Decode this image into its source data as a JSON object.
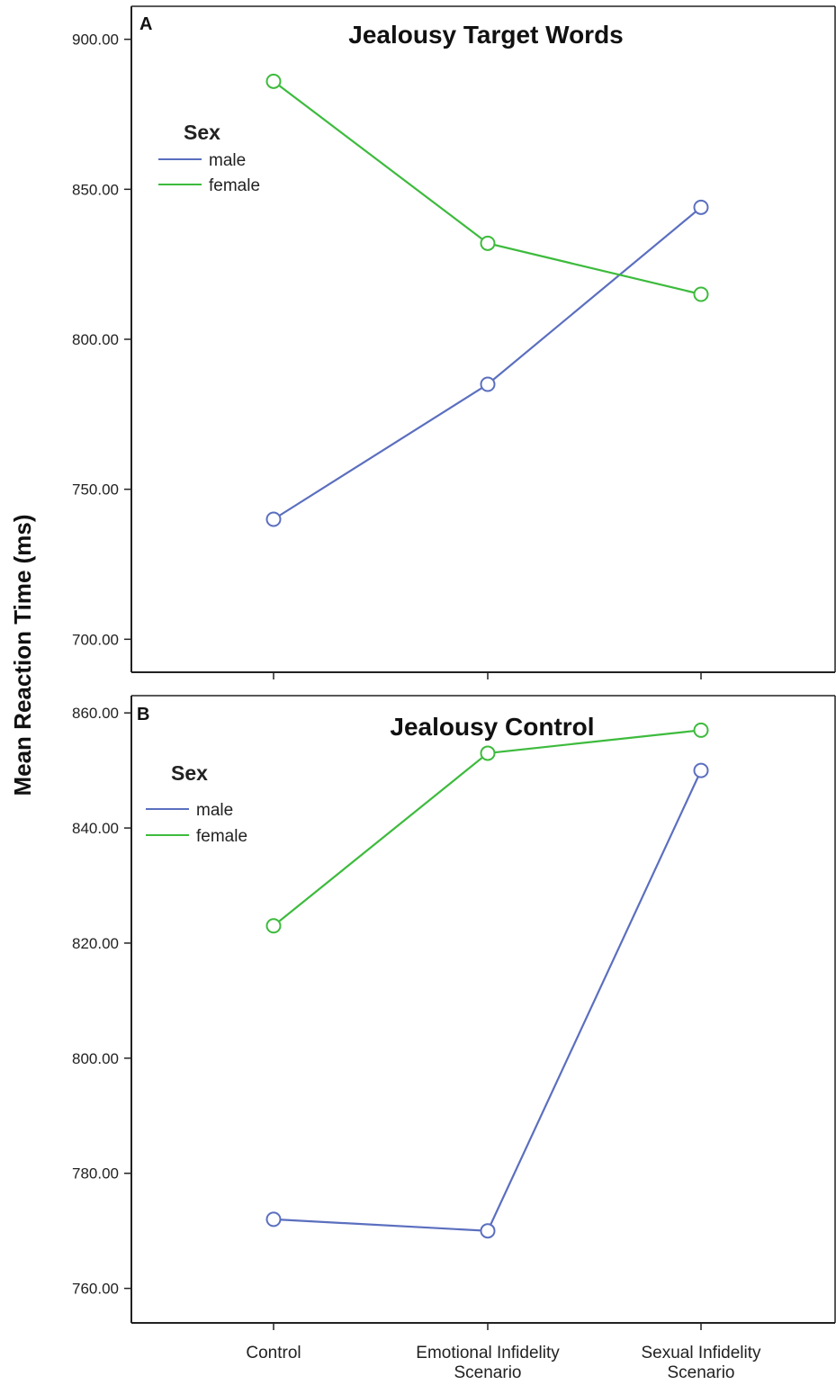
{
  "figure": {
    "ylabel": "Mean Reaction Time (ms)",
    "categories": [
      [
        "Control"
      ],
      [
        "Emotional Infidelity",
        "Scenario"
      ],
      [
        "Sexual Infidelity",
        "Scenario"
      ]
    ]
  },
  "colors": {
    "male": "#5b6fbf",
    "female": "#3dbb3d",
    "axis": "#222222"
  },
  "chart_data": [
    {
      "type": "line",
      "panel": "A",
      "title": "Jealousy Target Words",
      "ylabel": "Mean Reaction Time (ms)",
      "categories": [
        "Control",
        "Emotional Infidelity Scenario",
        "Sexual Infidelity Scenario"
      ],
      "yticks": [
        "700.00",
        "750.00",
        "800.00",
        "850.00",
        "900.00"
      ],
      "ylim": [
        689,
        911
      ],
      "legend": {
        "title": "Sex",
        "entries": [
          "male",
          "female"
        ],
        "placement": "upper-left"
      },
      "series": [
        {
          "name": "male",
          "values": [
            740,
            785,
            844
          ]
        },
        {
          "name": "female",
          "values": [
            886,
            832,
            815
          ]
        }
      ]
    },
    {
      "type": "line",
      "panel": "B",
      "title": "Jealousy Control",
      "ylabel": "Mean Reaction Time (ms)",
      "categories": [
        "Control",
        "Emotional Infidelity Scenario",
        "Sexual Infidelity Scenario"
      ],
      "yticks": [
        "760.00",
        "780.00",
        "800.00",
        "820.00",
        "840.00",
        "860.00"
      ],
      "ylim": [
        754,
        863
      ],
      "legend": {
        "title": "Sex",
        "entries": [
          "male",
          "female"
        ],
        "placement": "upper-left"
      },
      "series": [
        {
          "name": "male",
          "values": [
            772,
            770,
            850
          ]
        },
        {
          "name": "female",
          "values": [
            823,
            853,
            857
          ]
        }
      ]
    }
  ]
}
